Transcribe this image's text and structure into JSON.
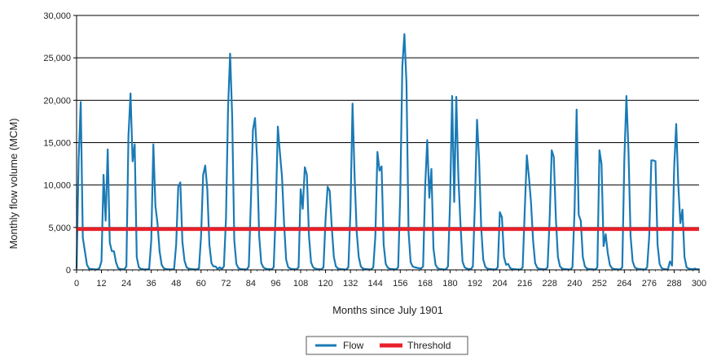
{
  "chart_data": {
    "type": "line",
    "title": "",
    "xlabel": "Months since July 1901",
    "ylabel": "Monthly flow volume (MCM)",
    "xlim": [
      0,
      300
    ],
    "ylim": [
      0,
      30000
    ],
    "x_ticks": [
      0,
      12,
      24,
      36,
      48,
      60,
      72,
      84,
      96,
      108,
      120,
      132,
      144,
      156,
      168,
      180,
      192,
      204,
      216,
      228,
      240,
      252,
      264,
      276,
      288,
      300
    ],
    "y_ticks": [
      0,
      5000,
      10000,
      15000,
      20000,
      25000,
      30000
    ],
    "y_tick_labels": [
      "0",
      "5,000",
      "10,000",
      "15,000",
      "20,000",
      "25,000",
      "30,000"
    ],
    "grid": "horizontal",
    "legend_position": "bottom-center",
    "series": [
      {
        "name": "Flow",
        "color": "#1a7ab5",
        "points": [
          [
            0,
            200
          ],
          [
            1,
            13000
          ],
          [
            2,
            19800
          ],
          [
            3,
            3800
          ],
          [
            4,
            2200
          ],
          [
            5,
            600
          ],
          [
            6,
            150
          ],
          [
            7,
            100
          ],
          [
            8,
            80
          ],
          [
            9,
            60
          ],
          [
            10,
            50
          ],
          [
            11,
            200
          ],
          [
            12,
            1000
          ],
          [
            13,
            11200
          ],
          [
            14,
            5800
          ],
          [
            15,
            14200
          ],
          [
            16,
            3200
          ],
          [
            17,
            2200
          ],
          [
            18,
            2200
          ],
          [
            19,
            900
          ],
          [
            20,
            200
          ],
          [
            21,
            100
          ],
          [
            22,
            80
          ],
          [
            23,
            60
          ],
          [
            24,
            400
          ],
          [
            25,
            15800
          ],
          [
            26,
            20800
          ],
          [
            27,
            12800
          ],
          [
            28,
            14800
          ],
          [
            29,
            1500
          ],
          [
            30,
            300
          ],
          [
            31,
            120
          ],
          [
            32,
            80
          ],
          [
            33,
            60
          ],
          [
            34,
            50
          ],
          [
            35,
            150
          ],
          [
            36,
            3500
          ],
          [
            37,
            14800
          ],
          [
            38,
            7500
          ],
          [
            39,
            5500
          ],
          [
            40,
            2200
          ],
          [
            41,
            600
          ],
          [
            42,
            200
          ],
          [
            43,
            100
          ],
          [
            44,
            80
          ],
          [
            45,
            60
          ],
          [
            46,
            50
          ],
          [
            47,
            100
          ],
          [
            48,
            3000
          ],
          [
            49,
            9800
          ],
          [
            50,
            10300
          ],
          [
            51,
            3300
          ],
          [
            52,
            1100
          ],
          [
            53,
            300
          ],
          [
            54,
            150
          ],
          [
            55,
            100
          ],
          [
            56,
            80
          ],
          [
            57,
            60
          ],
          [
            58,
            50
          ],
          [
            59,
            200
          ],
          [
            60,
            4000
          ],
          [
            61,
            11200
          ],
          [
            62,
            12300
          ],
          [
            63,
            9500
          ],
          [
            64,
            3000
          ],
          [
            65,
            800
          ],
          [
            66,
            400
          ],
          [
            67,
            400
          ],
          [
            68,
            100
          ],
          [
            69,
            300
          ],
          [
            70,
            80
          ],
          [
            71,
            400
          ],
          [
            72,
            6000
          ],
          [
            73,
            19000
          ],
          [
            74,
            25500
          ],
          [
            75,
            18000
          ],
          [
            76,
            3500
          ],
          [
            77,
            700
          ],
          [
            78,
            200
          ],
          [
            79,
            100
          ],
          [
            80,
            80
          ],
          [
            81,
            60
          ],
          [
            82,
            50
          ],
          [
            83,
            400
          ],
          [
            84,
            8000
          ],
          [
            85,
            16500
          ],
          [
            86,
            17900
          ],
          [
            87,
            13000
          ],
          [
            88,
            4000
          ],
          [
            89,
            800
          ],
          [
            90,
            300
          ],
          [
            91,
            150
          ],
          [
            92,
            100
          ],
          [
            93,
            80
          ],
          [
            94,
            60
          ],
          [
            95,
            300
          ],
          [
            96,
            7000
          ],
          [
            97,
            16900
          ],
          [
            98,
            13800
          ],
          [
            99,
            11000
          ],
          [
            100,
            5500
          ],
          [
            101,
            1200
          ],
          [
            102,
            300
          ],
          [
            103,
            150
          ],
          [
            104,
            100
          ],
          [
            105,
            80
          ],
          [
            106,
            60
          ],
          [
            107,
            300
          ],
          [
            108,
            9500
          ],
          [
            109,
            7200
          ],
          [
            110,
            12100
          ],
          [
            111,
            11200
          ],
          [
            112,
            4000
          ],
          [
            113,
            900
          ],
          [
            114,
            300
          ],
          [
            115,
            150
          ],
          [
            116,
            100
          ],
          [
            117,
            80
          ],
          [
            118,
            60
          ],
          [
            119,
            300
          ],
          [
            120,
            6000
          ],
          [
            121,
            9800
          ],
          [
            122,
            9300
          ],
          [
            123,
            5000
          ],
          [
            124,
            1500
          ],
          [
            125,
            400
          ],
          [
            126,
            150
          ],
          [
            127,
            100
          ],
          [
            128,
            80
          ],
          [
            129,
            60
          ],
          [
            130,
            50
          ],
          [
            131,
            300
          ],
          [
            132,
            7000
          ],
          [
            133,
            19600
          ],
          [
            134,
            11000
          ],
          [
            135,
            4500
          ],
          [
            136,
            1500
          ],
          [
            137,
            400
          ],
          [
            138,
            150
          ],
          [
            139,
            100
          ],
          [
            140,
            80
          ],
          [
            141,
            60
          ],
          [
            142,
            50
          ],
          [
            143,
            300
          ],
          [
            144,
            4000
          ],
          [
            145,
            13900
          ],
          [
            146,
            11700
          ],
          [
            147,
            12200
          ],
          [
            148,
            3000
          ],
          [
            149,
            700
          ],
          [
            150,
            250
          ],
          [
            151,
            120
          ],
          [
            152,
            100
          ],
          [
            153,
            80
          ],
          [
            154,
            60
          ],
          [
            155,
            300
          ],
          [
            156,
            9000
          ],
          [
            157,
            24000
          ],
          [
            158,
            27800
          ],
          [
            159,
            22000
          ],
          [
            160,
            4500
          ],
          [
            161,
            900
          ],
          [
            162,
            400
          ],
          [
            163,
            300
          ],
          [
            164,
            250
          ],
          [
            165,
            200
          ],
          [
            166,
            150
          ],
          [
            167,
            400
          ],
          [
            168,
            9800
          ],
          [
            169,
            15300
          ],
          [
            170,
            8500
          ],
          [
            171,
            11900
          ],
          [
            172,
            2500
          ],
          [
            173,
            600
          ],
          [
            174,
            200
          ],
          [
            175,
            100
          ],
          [
            176,
            80
          ],
          [
            177,
            60
          ],
          [
            178,
            50
          ],
          [
            179,
            400
          ],
          [
            180,
            8000
          ],
          [
            181,
            20500
          ],
          [
            182,
            8000
          ],
          [
            183,
            20400
          ],
          [
            184,
            11000
          ],
          [
            185,
            5500
          ],
          [
            186,
            1000
          ],
          [
            187,
            300
          ],
          [
            188,
            150
          ],
          [
            189,
            100
          ],
          [
            190,
            80
          ],
          [
            191,
            400
          ],
          [
            192,
            8000
          ],
          [
            193,
            17700
          ],
          [
            194,
            13000
          ],
          [
            195,
            5000
          ],
          [
            196,
            1200
          ],
          [
            197,
            350
          ],
          [
            198,
            150
          ],
          [
            199,
            100
          ],
          [
            200,
            80
          ],
          [
            201,
            60
          ],
          [
            202,
            50
          ],
          [
            203,
            300
          ],
          [
            204,
            6800
          ],
          [
            205,
            6200
          ],
          [
            206,
            1500
          ],
          [
            207,
            600
          ],
          [
            208,
            700
          ],
          [
            209,
            200
          ],
          [
            210,
            100
          ],
          [
            211,
            80
          ],
          [
            212,
            60
          ],
          [
            213,
            50
          ],
          [
            214,
            40
          ],
          [
            215,
            300
          ],
          [
            216,
            7000
          ],
          [
            217,
            13500
          ],
          [
            218,
            11000
          ],
          [
            219,
            8000
          ],
          [
            220,
            3500
          ],
          [
            221,
            800
          ],
          [
            222,
            250
          ],
          [
            223,
            120
          ],
          [
            224,
            100
          ],
          [
            225,
            80
          ],
          [
            226,
            60
          ],
          [
            227,
            300
          ],
          [
            228,
            6000
          ],
          [
            229,
            14100
          ],
          [
            230,
            13300
          ],
          [
            231,
            6000
          ],
          [
            232,
            1500
          ],
          [
            233,
            400
          ],
          [
            234,
            150
          ],
          [
            235,
            100
          ],
          [
            236,
            80
          ],
          [
            237,
            60
          ],
          [
            238,
            50
          ],
          [
            239,
            300
          ],
          [
            240,
            7000
          ],
          [
            241,
            18900
          ],
          [
            242,
            6500
          ],
          [
            243,
            5800
          ],
          [
            244,
            1500
          ],
          [
            245,
            400
          ],
          [
            246,
            150
          ],
          [
            247,
            100
          ],
          [
            248,
            80
          ],
          [
            249,
            60
          ],
          [
            250,
            50
          ],
          [
            251,
            300
          ],
          [
            252,
            14100
          ],
          [
            253,
            12500
          ],
          [
            254,
            2800
          ],
          [
            255,
            4200
          ],
          [
            256,
            2000
          ],
          [
            257,
            600
          ],
          [
            258,
            200
          ],
          [
            259,
            100
          ],
          [
            260,
            80
          ],
          [
            261,
            60
          ],
          [
            262,
            50
          ],
          [
            263,
            300
          ],
          [
            264,
            13000
          ],
          [
            265,
            20500
          ],
          [
            266,
            14000
          ],
          [
            267,
            4000
          ],
          [
            268,
            1000
          ],
          [
            269,
            300
          ],
          [
            270,
            150
          ],
          [
            271,
            100
          ],
          [
            272,
            80
          ],
          [
            273,
            60
          ],
          [
            274,
            50
          ],
          [
            275,
            300
          ],
          [
            276,
            4000
          ],
          [
            277,
            12900
          ],
          [
            278,
            12900
          ],
          [
            279,
            12800
          ],
          [
            280,
            3000
          ],
          [
            281,
            700
          ],
          [
            282,
            200
          ],
          [
            283,
            100
          ],
          [
            284,
            80
          ],
          [
            285,
            60
          ],
          [
            286,
            1000
          ],
          [
            287,
            500
          ],
          [
            288,
            12000
          ],
          [
            289,
            17200
          ],
          [
            290,
            10000
          ],
          [
            291,
            5500
          ],
          [
            292,
            7100
          ],
          [
            293,
            1500
          ],
          [
            294,
            300
          ],
          [
            295,
            150
          ],
          [
            296,
            100
          ],
          [
            297,
            80
          ],
          [
            298,
            150
          ],
          [
            299,
            60
          ],
          [
            300,
            80
          ]
        ]
      },
      {
        "name": "Threshold",
        "color": "#e8202a",
        "points": [
          [
            0,
            4800
          ],
          [
            300,
            4800
          ]
        ]
      }
    ]
  }
}
